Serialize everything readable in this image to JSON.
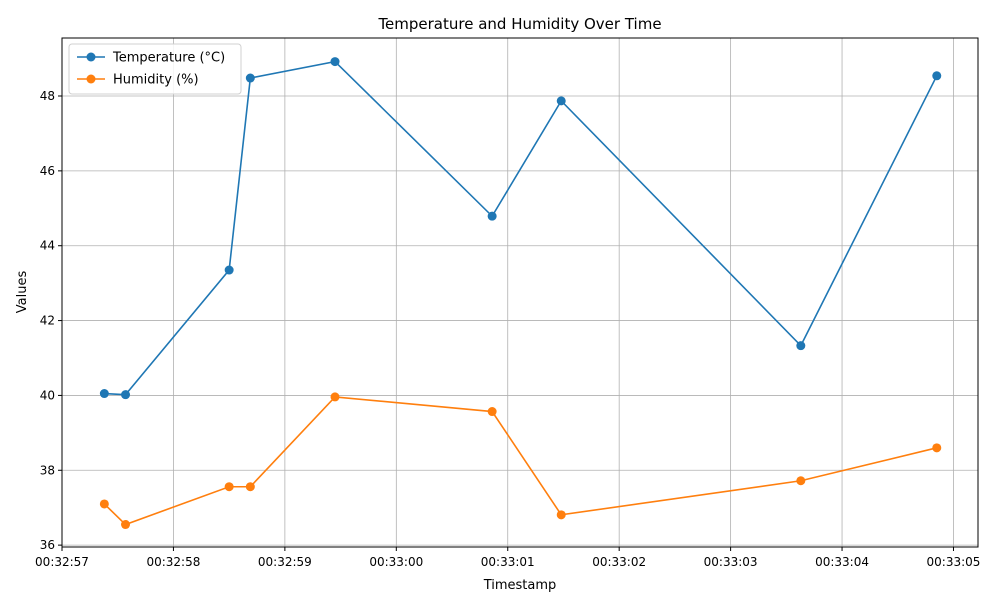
{
  "chart_data": {
    "type": "line",
    "title": "Temperature and Humidity Over Time",
    "xlabel": "Timestamp",
    "ylabel": "Values",
    "x": [
      "00:32:57.38",
      "00:32:57.57",
      "00:32:58.50",
      "00:32:58.69",
      "00:32:59.45",
      "00:33:00.86",
      "00:33:01.48",
      "00:33:03.63",
      "00:33:04.85"
    ],
    "xlim": [
      "00:32:57.00",
      "00:33:05.22"
    ],
    "ylim": [
      35.95,
      49.55
    ],
    "xticks": [
      "00:32:57",
      "00:32:58",
      "00:32:59",
      "00:33:00",
      "00:33:01",
      "00:33:02",
      "00:33:03",
      "00:33:04",
      "00:33:05"
    ],
    "yticks": [
      36,
      38,
      40,
      42,
      44,
      46,
      48
    ],
    "grid": true,
    "legend_position": "top-left",
    "series": [
      {
        "name": "Temperature (°C)",
        "color": "#1f77b4",
        "values": [
          40.05,
          40.02,
          43.35,
          48.48,
          48.92,
          44.79,
          47.87,
          41.33,
          48.54
        ]
      },
      {
        "name": "Humidity (%)",
        "color": "#ff7f0e",
        "values": [
          37.1,
          36.55,
          37.56,
          37.56,
          39.96,
          39.57,
          36.81,
          37.72,
          38.6
        ]
      }
    ]
  }
}
